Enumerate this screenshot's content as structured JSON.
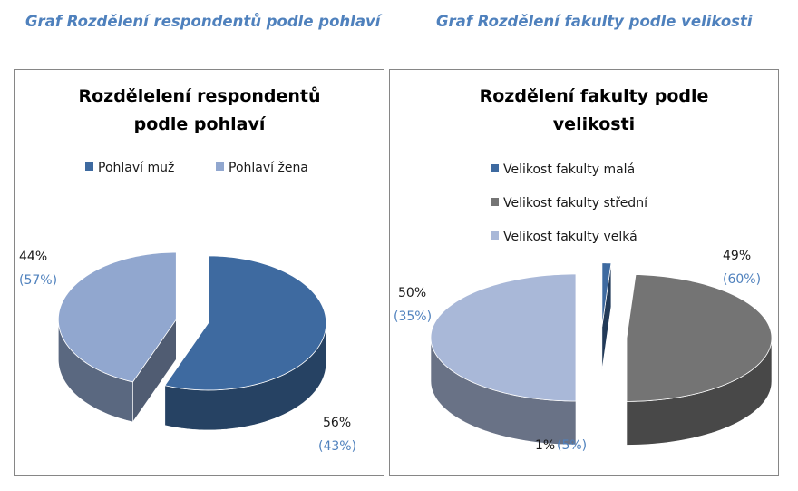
{
  "captions": {
    "left": "Graf Rozdělení respondentů podle pohlaví",
    "right": "Graf Rozdělení fakulty podle velikosti"
  },
  "chart_data": [
    {
      "type": "pie",
      "title_lines": [
        "Rozdělelení respondentů",
        "podle pohlaví"
      ],
      "legend_position": "top",
      "categories": [
        "Pohlaví muž",
        "Pohlaví žena"
      ],
      "values": [
        56,
        44
      ],
      "labels": [
        "56%",
        "44%"
      ],
      "labels_secondary": [
        "(43%)",
        "(57%)"
      ],
      "colors": [
        "#3e6aa0",
        "#91a7cf"
      ]
    },
    {
      "type": "pie",
      "title_lines": [
        "Rozdělení fakulty podle",
        "velikosti"
      ],
      "legend_position": "top",
      "categories": [
        "Velikost fakulty malá",
        "Velikost fakulty střední",
        "Velikost fakulty velká"
      ],
      "values": [
        1,
        49,
        50
      ],
      "labels": [
        "1%",
        "49%",
        "50%"
      ],
      "labels_secondary": [
        "(5%)",
        "(60%)",
        "(35%)"
      ],
      "colors": [
        "#3e6aa0",
        "#747474",
        "#a9b8d8"
      ]
    }
  ]
}
